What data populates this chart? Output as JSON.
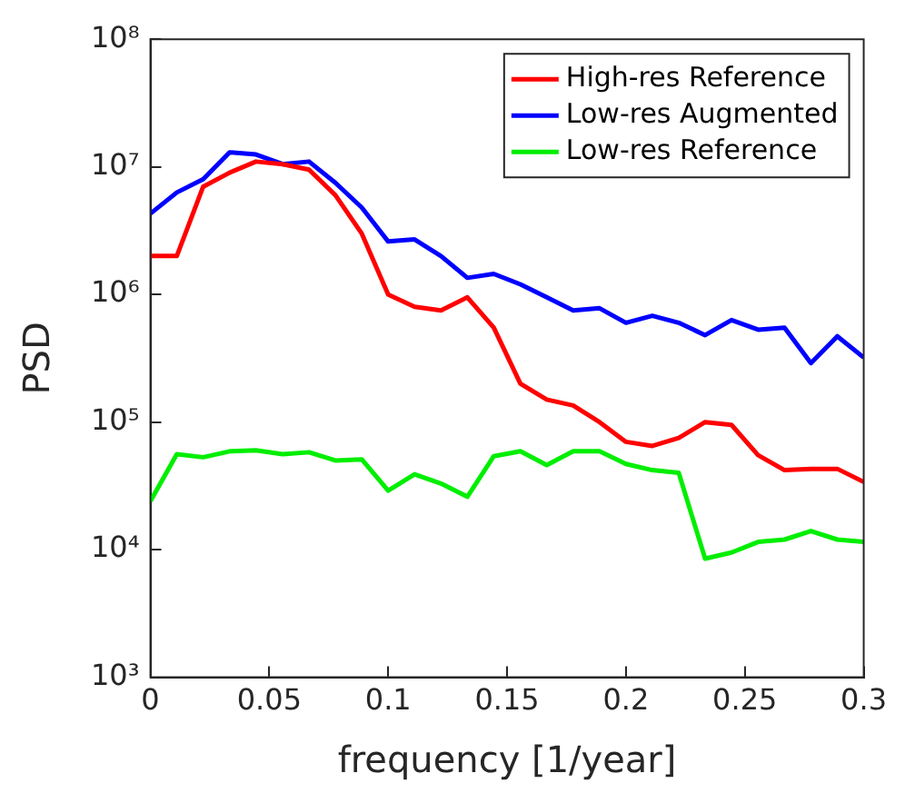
{
  "chart_data": {
    "type": "line",
    "xlabel": "frequency [1/year]",
    "ylabel": "PSD",
    "x": [
      0,
      0.0111,
      0.0222,
      0.0333,
      0.0444,
      0.0556,
      0.0667,
      0.0778,
      0.0889,
      0.1,
      0.1111,
      0.1222,
      0.1333,
      0.1444,
      0.1556,
      0.1667,
      0.1778,
      0.1889,
      0.2,
      0.2111,
      0.2222,
      0.2333,
      0.2444,
      0.2556,
      0.2667,
      0.2778,
      0.2889,
      0.3
    ],
    "series": [
      {
        "name": "High-res Reference",
        "color": "#ff0000",
        "values": [
          2000000,
          2000000,
          7000000,
          9000000,
          11000000,
          10500000,
          9500000,
          6000000,
          3000000,
          1000000,
          800000,
          750000,
          950000,
          550000,
          200000,
          150000,
          135000,
          100000,
          70000,
          65000,
          75000,
          100000,
          95000,
          55000,
          42000,
          43000,
          43000,
          34000
        ]
      },
      {
        "name": "Low-res Augmented",
        "color": "#0000ff",
        "values": [
          4300000,
          6300000,
          8000000,
          13000000,
          12500000,
          10500000,
          11000000,
          7500000,
          4800000,
          2600000,
          2700000,
          2000000,
          1350000,
          1450000,
          1200000,
          950000,
          750000,
          780000,
          600000,
          680000,
          600000,
          480000,
          630000,
          530000,
          550000,
          290000,
          470000,
          320000
        ]
      },
      {
        "name": "Low-res Reference",
        "color": "#00ee00",
        "values": [
          24000,
          56000,
          53000,
          59000,
          60000,
          56000,
          58000,
          50000,
          51000,
          29000,
          39000,
          33000,
          26000,
          54000,
          59000,
          46000,
          59000,
          59000,
          47000,
          42000,
          40000,
          8500,
          9500,
          11500,
          12000,
          14000,
          12000,
          11500
        ]
      }
    ],
    "xlim": [
      0,
      0.3
    ],
    "xticks": [
      0,
      0.05,
      0.1,
      0.15,
      0.2,
      0.25,
      0.3
    ],
    "ylim": [
      1000,
      100000000
    ],
    "yticks": [
      {
        "value": 1000,
        "label": "10³"
      },
      {
        "value": 10000,
        "label": "10⁴"
      },
      {
        "value": 100000,
        "label": "10⁵"
      },
      {
        "value": 1000000,
        "label": "10⁶"
      },
      {
        "value": 10000000,
        "label": "10⁷"
      },
      {
        "value": 100000000,
        "label": "10⁸"
      }
    ],
    "log": "y",
    "grid": false,
    "legend": "top right",
    "marker": "none",
    "line_style": "solid"
  }
}
